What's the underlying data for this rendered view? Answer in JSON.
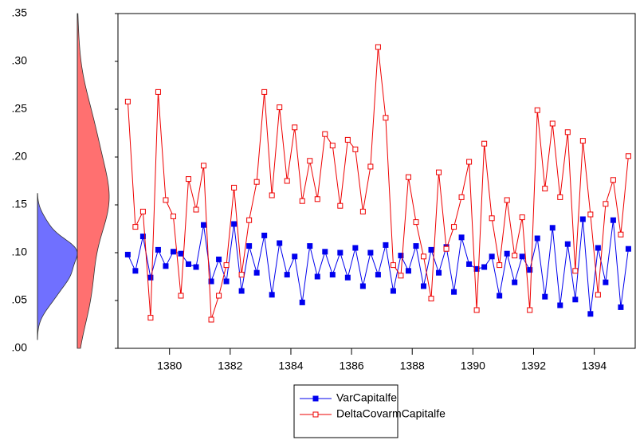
{
  "chart_data": {
    "type": "line",
    "x": [
      1378.625,
      1378.875,
      1379.125,
      1379.375,
      1379.625,
      1379.875,
      1380.125,
      1380.375,
      1380.625,
      1380.875,
      1381.125,
      1381.375,
      1381.625,
      1381.875,
      1382.125,
      1382.375,
      1382.625,
      1382.875,
      1383.125,
      1383.375,
      1383.625,
      1383.875,
      1384.125,
      1384.375,
      1384.625,
      1384.875,
      1385.125,
      1385.375,
      1385.625,
      1385.875,
      1386.125,
      1386.375,
      1386.625,
      1386.875,
      1387.125,
      1387.375,
      1387.625,
      1387.875,
      1388.125,
      1388.375,
      1388.625,
      1388.875,
      1389.125,
      1389.375,
      1389.625,
      1389.875,
      1390.125,
      1390.375,
      1390.625,
      1390.875,
      1391.125,
      1391.375,
      1391.625,
      1391.875,
      1392.125,
      1392.375,
      1392.625,
      1392.875,
      1393.125,
      1393.375,
      1393.625,
      1393.875,
      1394.125,
      1394.375,
      1394.625,
      1394.875,
      1395.125
    ],
    "series": [
      {
        "name": "VarCapitalfe",
        "color": "#0000ee",
        "marker": "filled-square",
        "values": [
          0.098,
          0.081,
          0.117,
          0.074,
          0.103,
          0.086,
          0.101,
          0.099,
          0.088,
          0.085,
          0.129,
          0.07,
          0.093,
          0.07,
          0.13,
          0.06,
          0.107,
          0.079,
          0.118,
          0.056,
          0.11,
          0.077,
          0.096,
          0.048,
          0.107,
          0.075,
          0.101,
          0.077,
          0.1,
          0.074,
          0.105,
          0.065,
          0.1,
          0.077,
          0.108,
          0.06,
          0.097,
          0.081,
          0.107,
          0.065,
          0.103,
          0.079,
          0.106,
          0.059,
          0.116,
          0.088,
          0.083,
          0.085,
          0.096,
          0.055,
          0.099,
          0.069,
          0.096,
          0.082,
          0.115,
          0.054,
          0.126,
          0.045,
          0.109,
          0.051,
          0.135,
          0.036,
          0.105,
          0.069,
          0.134,
          0.043,
          0.104
        ]
      },
      {
        "name": "DeltaCovarmCapitalfe",
        "color": "#ee0000",
        "marker": "open-square",
        "density_color": "#ff7070",
        "values": [
          0.258,
          0.127,
          0.143,
          0.032,
          0.268,
          0.155,
          0.138,
          0.055,
          0.177,
          0.145,
          0.191,
          0.03,
          0.055,
          0.087,
          0.168,
          0.077,
          0.134,
          0.174,
          0.268,
          0.16,
          0.252,
          0.175,
          0.231,
          0.154,
          0.196,
          0.156,
          0.224,
          0.212,
          0.149,
          0.218,
          0.208,
          0.143,
          0.19,
          0.315,
          0.241,
          0.087,
          0.076,
          0.179,
          0.132,
          0.096,
          0.052,
          0.184,
          0.104,
          0.127,
          0.158,
          0.195,
          0.04,
          0.214,
          0.136,
          0.087,
          0.155,
          0.097,
          0.137,
          0.04,
          0.249,
          0.167,
          0.235,
          0.158,
          0.226,
          0.081,
          0.217,
          0.14,
          0.056,
          0.151,
          0.176,
          0.119,
          0.201
        ]
      }
    ],
    "density_colors": [
      "#7070ff",
      "#ff7070"
    ],
    "xlim": [
      1378.3,
      1395.35
    ],
    "xticks": [
      1380,
      1382,
      1384,
      1386,
      1388,
      1390,
      1392,
      1394
    ],
    "ylim": [
      0,
      0.35
    ],
    "yticks": [
      {
        "value": 0,
        "label": ".00"
      },
      {
        "value": 0.05,
        "label": ".05"
      },
      {
        "value": 0.1,
        "label": ".10"
      },
      {
        "value": 0.15,
        "label": ".15"
      },
      {
        "value": 0.2,
        "label": ".20"
      },
      {
        "value": 0.25,
        "label": ".25"
      },
      {
        "value": 0.3,
        "label": ".30"
      },
      {
        "value": 0.35,
        "label": ".35"
      }
    ],
    "grid": false,
    "legend": "bottom"
  }
}
